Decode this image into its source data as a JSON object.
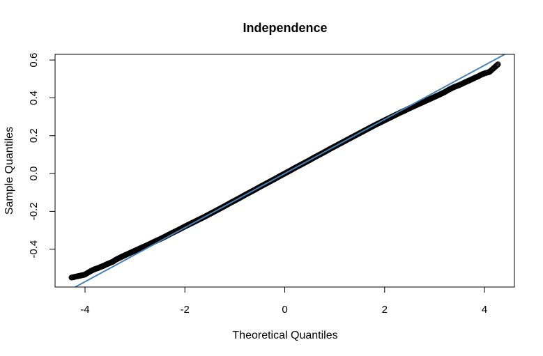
{
  "chart_data": {
    "type": "scatter",
    "title": "Independence",
    "xlabel": "Theoretical Quantiles",
    "ylabel": "Sample Quantiles",
    "xlim": [
      -4.6,
      4.6
    ],
    "ylim": [
      -0.6,
      0.63
    ],
    "xticks": [
      -4,
      -2,
      0,
      2,
      4
    ],
    "xtick_labels": [
      "-4",
      "-2",
      "0",
      "2",
      "4"
    ],
    "yticks": [
      -0.4,
      -0.2,
      0.0,
      0.2,
      0.4,
      0.6
    ],
    "ytick_labels": [
      "-0.4",
      "-0.2",
      "0.0",
      "0.2",
      "0.4",
      "0.6"
    ],
    "grid": false,
    "reference_line": {
      "slope": 0.143,
      "intercept": 0.0,
      "color": "#4682b4"
    },
    "point_color": "#000000",
    "points": [
      [
        -4.27,
        -0.55
      ],
      [
        -4.01,
        -0.535
      ],
      [
        -3.88,
        -0.515
      ],
      [
        -3.8,
        -0.505
      ],
      [
        -3.74,
        -0.5
      ],
      [
        -3.68,
        -0.493
      ],
      [
        -3.62,
        -0.487
      ],
      [
        -3.57,
        -0.48
      ],
      [
        -3.53,
        -0.476
      ],
      [
        -3.48,
        -0.47
      ],
      [
        -3.44,
        -0.466
      ],
      [
        -3.4,
        -0.458
      ],
      [
        -3.34,
        -0.45
      ],
      [
        -3.28,
        -0.442
      ],
      [
        -3.2,
        -0.432
      ],
      [
        -3.1,
        -0.42
      ],
      [
        -3.0,
        -0.408
      ],
      [
        -2.9,
        -0.396
      ],
      [
        -2.8,
        -0.384
      ],
      [
        -2.7,
        -0.372
      ],
      [
        -2.6,
        -0.359
      ],
      [
        -2.5,
        -0.347
      ],
      [
        -2.4,
        -0.334
      ],
      [
        -2.3,
        -0.32
      ],
      [
        -2.2,
        -0.307
      ],
      [
        -2.1,
        -0.294
      ],
      [
        -2.0,
        -0.28
      ],
      [
        -1.9,
        -0.267
      ],
      [
        -1.8,
        -0.254
      ],
      [
        -1.7,
        -0.241
      ],
      [
        -1.6,
        -0.228
      ],
      [
        -1.5,
        -0.214
      ],
      [
        -1.4,
        -0.2
      ],
      [
        -1.3,
        -0.186
      ],
      [
        -1.2,
        -0.172
      ],
      [
        -1.1,
        -0.157
      ],
      [
        -1.0,
        -0.143
      ],
      [
        -0.9,
        -0.129
      ],
      [
        -0.8,
        -0.114
      ],
      [
        -0.7,
        -0.1
      ],
      [
        -0.6,
        -0.086
      ],
      [
        -0.5,
        -0.071
      ],
      [
        -0.4,
        -0.057
      ],
      [
        -0.3,
        -0.043
      ],
      [
        -0.2,
        -0.029
      ],
      [
        -0.1,
        -0.014
      ],
      [
        0.0,
        0.0
      ],
      [
        0.1,
        0.014
      ],
      [
        0.2,
        0.029
      ],
      [
        0.3,
        0.043
      ],
      [
        0.4,
        0.057
      ],
      [
        0.5,
        0.071
      ],
      [
        0.6,
        0.086
      ],
      [
        0.7,
        0.1
      ],
      [
        0.8,
        0.114
      ],
      [
        0.9,
        0.129
      ],
      [
        1.0,
        0.143
      ],
      [
        1.1,
        0.157
      ],
      [
        1.2,
        0.171
      ],
      [
        1.3,
        0.185
      ],
      [
        1.4,
        0.199
      ],
      [
        1.5,
        0.213
      ],
      [
        1.6,
        0.227
      ],
      [
        1.7,
        0.241
      ],
      [
        1.8,
        0.255
      ],
      [
        1.9,
        0.268
      ],
      [
        2.0,
        0.281
      ],
      [
        2.1,
        0.294
      ],
      [
        2.2,
        0.307
      ],
      [
        2.3,
        0.32
      ],
      [
        2.4,
        0.332
      ],
      [
        2.5,
        0.345
      ],
      [
        2.6,
        0.357
      ],
      [
        2.7,
        0.369
      ],
      [
        2.8,
        0.381
      ],
      [
        2.9,
        0.393
      ],
      [
        3.0,
        0.405
      ],
      [
        3.1,
        0.417
      ],
      [
        3.2,
        0.43
      ],
      [
        3.3,
        0.445
      ],
      [
        3.4,
        0.458
      ],
      [
        3.5,
        0.468
      ],
      [
        3.58,
        0.478
      ],
      [
        3.66,
        0.488
      ],
      [
        3.73,
        0.496
      ],
      [
        3.8,
        0.505
      ],
      [
        3.87,
        0.513
      ],
      [
        3.94,
        0.523
      ],
      [
        4.01,
        0.53
      ],
      [
        4.1,
        0.537
      ],
      [
        4.27,
        0.577
      ]
    ]
  }
}
